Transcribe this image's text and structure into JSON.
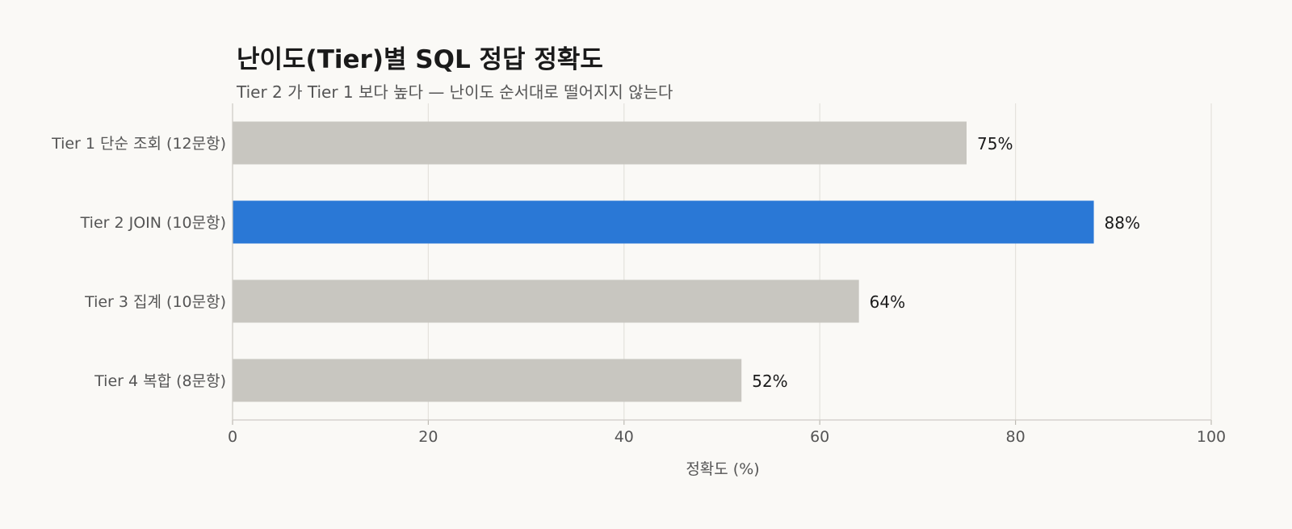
{
  "chart_data": {
    "type": "bar",
    "orientation": "horizontal",
    "title": "난이도(Tier)별 SQL 정답 정확도",
    "subtitle": "Tier 2 가 Tier 1 보다 높다 — 난이도 순서대로 떨어지지 않는다",
    "categories": [
      "Tier 1 단순 조회 (12문항)",
      "Tier 2 JOIN (10문항)",
      "Tier 3 집계 (10문항)",
      "Tier 4 복합 (8문항)"
    ],
    "values": [
      75,
      88,
      64,
      52
    ],
    "value_labels": [
      "75%",
      "88%",
      "64%",
      "52%"
    ],
    "highlight_index": 1,
    "xlabel": "정확도 (%)",
    "xlim": [
      0,
      100
    ],
    "xticks": [
      0,
      20,
      40,
      60,
      80,
      100
    ],
    "grid": "vertical",
    "colors": {
      "default": "#c8c6c0",
      "highlight": "#2a78d6",
      "grid": "#e4e2dd"
    }
  }
}
